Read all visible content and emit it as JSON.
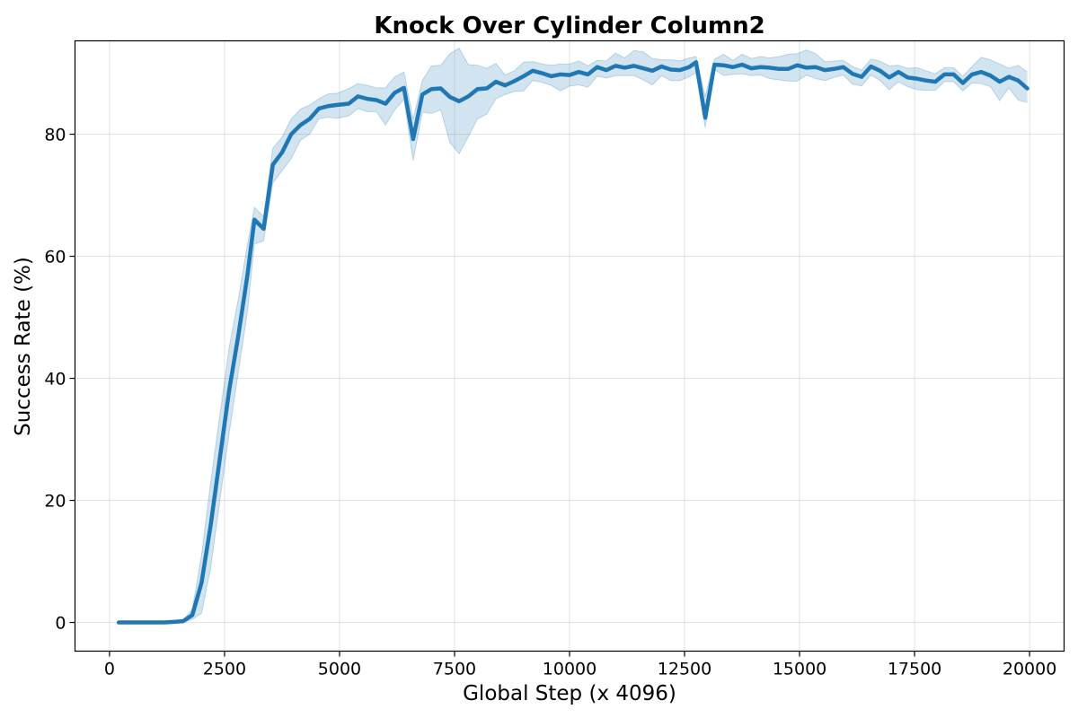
{
  "chart_data": {
    "type": "line",
    "title": "Knock Over Cylinder Column2",
    "xlabel": "Global Step (x 4096)",
    "ylabel": "Success Rate (%)",
    "xlim": [
      -750,
      20750
    ],
    "ylim": [
      -4.7,
      95.3
    ],
    "xticks": [
      0,
      2500,
      5000,
      7500,
      10000,
      12500,
      15000,
      17500,
      20000
    ],
    "yticks": [
      0,
      20,
      40,
      60,
      80
    ],
    "grid": true,
    "legend": "none",
    "color": "#1f77b4",
    "series": [
      {
        "x": [
          200,
          400,
          600,
          800,
          1000,
          1200,
          1400,
          1600,
          1800,
          2000,
          2200,
          2400,
          2600,
          2800,
          3000,
          3150,
          3350,
          3550,
          3750,
          3950,
          4150,
          4350,
          4550,
          4750,
          4950,
          5200,
          5400,
          5600,
          5800,
          6000,
          6200,
          6400,
          6600,
          6800,
          7000,
          7200,
          7400,
          7600,
          7800,
          8000,
          8200,
          8400,
          8600,
          8800,
          9000,
          9200,
          9400,
          9600,
          9800,
          10000,
          10200,
          10400,
          10600,
          10800,
          11000,
          11200,
          11400,
          11600,
          11800,
          12000,
          12200,
          12400,
          12600,
          12750,
          12950,
          13150,
          13350,
          13550,
          13750,
          13950,
          14150,
          14350,
          14550,
          14750,
          14950,
          15150,
          15350,
          15550,
          15750,
          15950,
          16150,
          16350,
          16550,
          16750,
          16950,
          17150,
          17350,
          17550,
          17750,
          17950,
          18150,
          18350,
          18550,
          18750,
          18950,
          19150,
          19350,
          19550,
          19750,
          19950
        ],
        "mean": [
          0,
          0,
          0,
          0,
          0,
          0,
          0.1,
          0.2,
          1.2,
          6.5,
          16,
          27,
          38,
          47,
          57,
          66,
          64.5,
          75,
          77,
          80,
          81.5,
          82.5,
          84.2,
          84.6,
          84.8,
          85,
          86.2,
          85.8,
          85.6,
          85,
          86.8,
          87.6,
          79.2,
          86.5,
          87.4,
          87.5,
          86.1,
          85.4,
          86.2,
          87.4,
          87.5,
          88.6,
          88.0,
          88.7,
          89.5,
          90.4,
          90.0,
          89.5,
          89.8,
          89.7,
          90.2,
          89.8,
          91,
          90.5,
          91.2,
          90.9,
          91.2,
          90.8,
          90.4,
          91.1,
          90.6,
          90.5,
          91.0,
          91.8,
          82.7,
          91.4,
          91.3,
          91.0,
          91.4,
          90.8,
          91.0,
          90.9,
          90.7,
          90.7,
          91.3,
          90.9,
          91.0,
          90.5,
          90.7,
          91.0,
          89.9,
          89.4,
          91.1,
          90.4,
          89.3,
          90.2,
          89.3,
          89.1,
          88.8,
          88.6,
          89.8,
          89.8,
          88.4,
          89.8,
          90.2,
          89.6,
          88.6,
          89.4,
          88.8,
          87.5
        ],
        "lower": [
          0,
          0,
          0,
          0,
          0,
          0,
          0,
          0,
          0.5,
          1.5,
          9,
          20,
          31,
          41,
          51,
          62,
          62.5,
          72,
          74,
          76,
          79,
          80,
          82.5,
          82.8,
          82.6,
          83,
          84.2,
          83.7,
          83.7,
          81.5,
          84,
          85.7,
          75.7,
          83.6,
          83.4,
          84,
          78.6,
          76.8,
          79.6,
          82.5,
          83.3,
          85.8,
          86.5,
          87,
          87.1,
          88.8,
          88.5,
          88,
          87.1,
          87.9,
          88.1,
          87.7,
          89.5,
          89.2,
          89.6,
          89.6,
          89.6,
          88.9,
          88.1,
          89.6,
          88.8,
          88.8,
          89.4,
          90.1,
          81.1,
          90.6,
          89.6,
          89.8,
          89.9,
          89.6,
          89.7,
          89.1,
          88.9,
          88.7,
          88.7,
          89.7,
          89.1,
          88.8,
          89.3,
          89.7,
          88.2,
          87.9,
          89.7,
          88.8,
          87.3,
          88.6,
          87.8,
          87.3,
          87.2,
          87.2,
          88.6,
          88.6,
          87.1,
          88.4,
          88.3,
          87.8,
          85.5,
          87.6,
          85.6,
          85.2
        ],
        "upper": [
          0,
          0,
          0,
          0,
          0,
          0,
          0.2,
          0.4,
          2.2,
          11,
          23,
          34,
          45,
          53,
          62,
          68,
          66.5,
          77.7,
          79.5,
          82.5,
          84.1,
          84.8,
          85.8,
          86.6,
          86.7,
          87.5,
          88.3,
          88.0,
          87.6,
          87.6,
          89.4,
          90.2,
          82.5,
          88.8,
          91.2,
          91.3,
          93.2,
          94.1,
          91.4,
          91.3,
          90.8,
          91.6,
          89.7,
          90.4,
          91.8,
          91.9,
          91.5,
          91.3,
          91.5,
          91.5,
          92.0,
          91.2,
          92.1,
          92.0,
          93.3,
          92.5,
          93.7,
          93.5,
          92.4,
          92.2,
          92.2,
          92.0,
          92.5,
          92.7,
          86.2,
          92.3,
          93.1,
          92.1,
          93.1,
          92.4,
          92.7,
          92.5,
          92.7,
          93.1,
          93.2,
          93.8,
          93.2,
          91.9,
          92.0,
          92.1,
          91.1,
          90.5,
          92.3,
          92.0,
          91.2,
          91.3,
          90.8,
          90.9,
          90.4,
          89.9,
          90.9,
          90.9,
          89.5,
          91.1,
          92.6,
          92.2,
          91.5,
          90.8,
          91.3,
          90.2
        ]
      }
    ]
  }
}
